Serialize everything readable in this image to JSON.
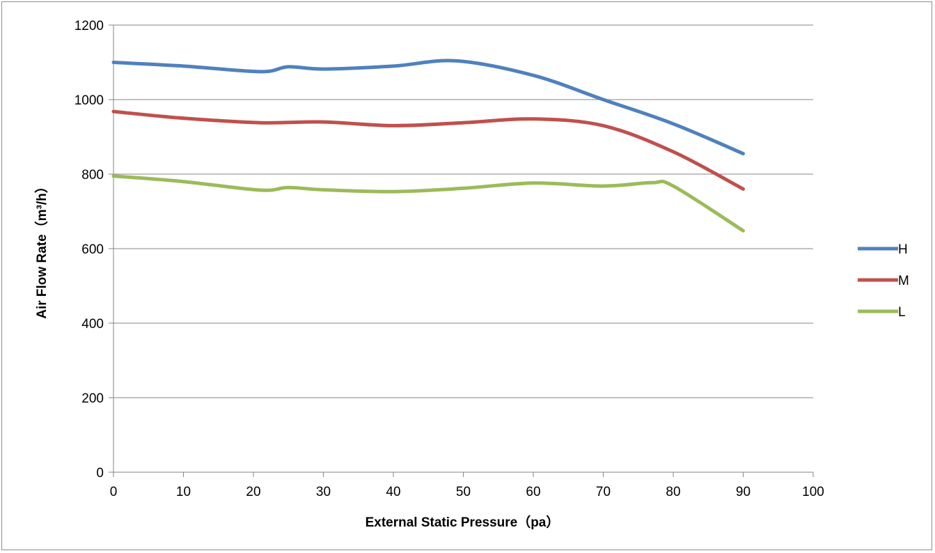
{
  "chart_data": {
    "type": "line",
    "title": "",
    "xlabel": "External Static Pressure（pa）",
    "ylabel": "Air Flow Rate（m³/h）",
    "xlim": [
      0,
      100
    ],
    "ylim": [
      0,
      1200
    ],
    "x_ticks": [
      "0",
      "10",
      "20",
      "30",
      "40",
      "50",
      "60",
      "70",
      "80",
      "90",
      "100"
    ],
    "y_ticks": [
      "0",
      "200",
      "400",
      "600",
      "800",
      "1000",
      "1200"
    ],
    "grid": "horizontal",
    "legend_position": "right",
    "smooth": true,
    "series": [
      {
        "name": "H",
        "color": "#4f81bd",
        "x": [
          0,
          10,
          21,
          25,
          30,
          40,
          49,
          60,
          70,
          80,
          90
        ],
        "values": [
          1100,
          1090,
          1075,
          1088,
          1082,
          1090,
          1104,
          1065,
          1000,
          935,
          855
        ]
      },
      {
        "name": "M",
        "color": "#c0504d",
        "x": [
          0,
          10,
          21,
          30,
          40,
          50,
          60,
          70,
          80,
          90
        ],
        "values": [
          968,
          950,
          938,
          940,
          930,
          938,
          948,
          930,
          860,
          760
        ]
      },
      {
        "name": "L",
        "color": "#9bbb59",
        "x": [
          0,
          10,
          21,
          25,
          30,
          40,
          50,
          60,
          70,
          77,
          80,
          90
        ],
        "values": [
          795,
          780,
          757,
          764,
          758,
          753,
          762,
          776,
          768,
          777,
          768,
          648
        ]
      }
    ]
  }
}
